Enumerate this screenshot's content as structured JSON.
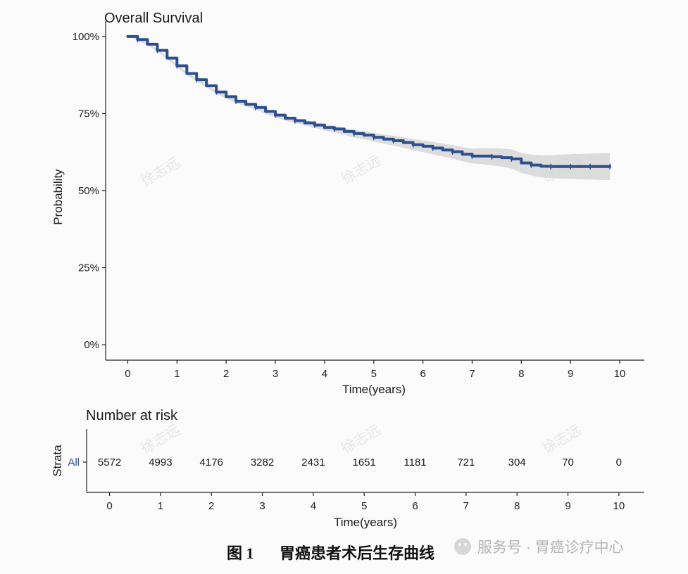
{
  "chart_data": [
    {
      "type": "line",
      "title": "Overall Survival",
      "xlabel": "Time(years)",
      "ylabel": "Probability",
      "xlim": [
        -0.45,
        10.5
      ],
      "ylim": [
        -0.05,
        1.05
      ],
      "x_ticks": [
        0,
        1,
        2,
        3,
        4,
        5,
        6,
        7,
        8,
        9,
        10
      ],
      "y_ticks": [
        0,
        0.25,
        0.5,
        0.75,
        1.0
      ],
      "y_tick_labels": [
        "0%",
        "25%",
        "50%",
        "75%",
        "100%"
      ],
      "grid": false,
      "series": [
        {
          "name": "All",
          "color": "#2c4f8e",
          "ci_color": "#d5d5d5",
          "x": [
            0,
            0.2,
            0.4,
            0.6,
            0.8,
            1.0,
            1.2,
            1.4,
            1.6,
            1.8,
            2.0,
            2.2,
            2.4,
            2.6,
            2.8,
            3.0,
            3.2,
            3.4,
            3.6,
            3.8,
            4.0,
            4.2,
            4.4,
            4.6,
            4.8,
            5.0,
            5.2,
            5.4,
            5.6,
            5.8,
            6.0,
            6.2,
            6.4,
            6.6,
            6.8,
            7.0,
            7.2,
            7.4,
            7.6,
            7.8,
            8.0,
            8.2,
            8.4,
            8.6,
            8.8,
            9.0,
            9.2,
            9.4,
            9.6,
            9.8
          ],
          "y": [
            1.0,
            0.99,
            0.975,
            0.955,
            0.93,
            0.905,
            0.88,
            0.86,
            0.84,
            0.82,
            0.805,
            0.79,
            0.78,
            0.77,
            0.757,
            0.745,
            0.735,
            0.727,
            0.72,
            0.713,
            0.705,
            0.7,
            0.692,
            0.685,
            0.68,
            0.673,
            0.667,
            0.662,
            0.656,
            0.649,
            0.644,
            0.638,
            0.632,
            0.626,
            0.618,
            0.612,
            0.612,
            0.61,
            0.607,
            0.603,
            0.59,
            0.583,
            0.579,
            0.578,
            0.578,
            0.578,
            0.578,
            0.578,
            0.578,
            0.578
          ],
          "ci_lower": [
            1.0,
            0.988,
            0.972,
            0.951,
            0.926,
            0.9,
            0.875,
            0.855,
            0.834,
            0.814,
            0.799,
            0.784,
            0.773,
            0.763,
            0.75,
            0.737,
            0.727,
            0.719,
            0.711,
            0.704,
            0.695,
            0.689,
            0.681,
            0.673,
            0.667,
            0.659,
            0.652,
            0.646,
            0.639,
            0.631,
            0.625,
            0.618,
            0.611,
            0.604,
            0.595,
            0.588,
            0.586,
            0.582,
            0.578,
            0.572,
            0.558,
            0.549,
            0.543,
            0.541,
            0.539,
            0.538,
            0.537,
            0.536,
            0.535,
            0.534
          ],
          "ci_upper": [
            1.0,
            0.992,
            0.978,
            0.959,
            0.934,
            0.91,
            0.885,
            0.865,
            0.846,
            0.826,
            0.811,
            0.796,
            0.787,
            0.777,
            0.764,
            0.753,
            0.743,
            0.735,
            0.729,
            0.722,
            0.715,
            0.711,
            0.703,
            0.697,
            0.693,
            0.687,
            0.682,
            0.678,
            0.673,
            0.667,
            0.663,
            0.658,
            0.653,
            0.648,
            0.641,
            0.636,
            0.638,
            0.638,
            0.636,
            0.634,
            0.622,
            0.617,
            0.615,
            0.615,
            0.617,
            0.618,
            0.619,
            0.62,
            0.621,
            0.622
          ]
        }
      ]
    },
    {
      "type": "table",
      "title": "Number at risk",
      "xlabel": "Time(years)",
      "ylabel": "Strata",
      "xlim": [
        -0.45,
        10.5
      ],
      "x_ticks": [
        0,
        1,
        2,
        3,
        4,
        5,
        6,
        7,
        8,
        9,
        10
      ],
      "strata": [
        "All"
      ],
      "strata_color": "#2c4f8e",
      "rows": [
        {
          "name": "All",
          "times": [
            0,
            1,
            2,
            3,
            4,
            5,
            6,
            7,
            8,
            9,
            10
          ],
          "values": [
            5572,
            4993,
            4176,
            3282,
            2431,
            1651,
            1181,
            721,
            304,
            70,
            0
          ]
        }
      ]
    }
  ],
  "caption": {
    "figure_label": "图 1",
    "text": "胃癌患者术后生存曲线"
  },
  "watermark": {
    "text": "徐志远"
  },
  "source_badge": {
    "text": "服务号 · 胃癌诊疗中心"
  }
}
